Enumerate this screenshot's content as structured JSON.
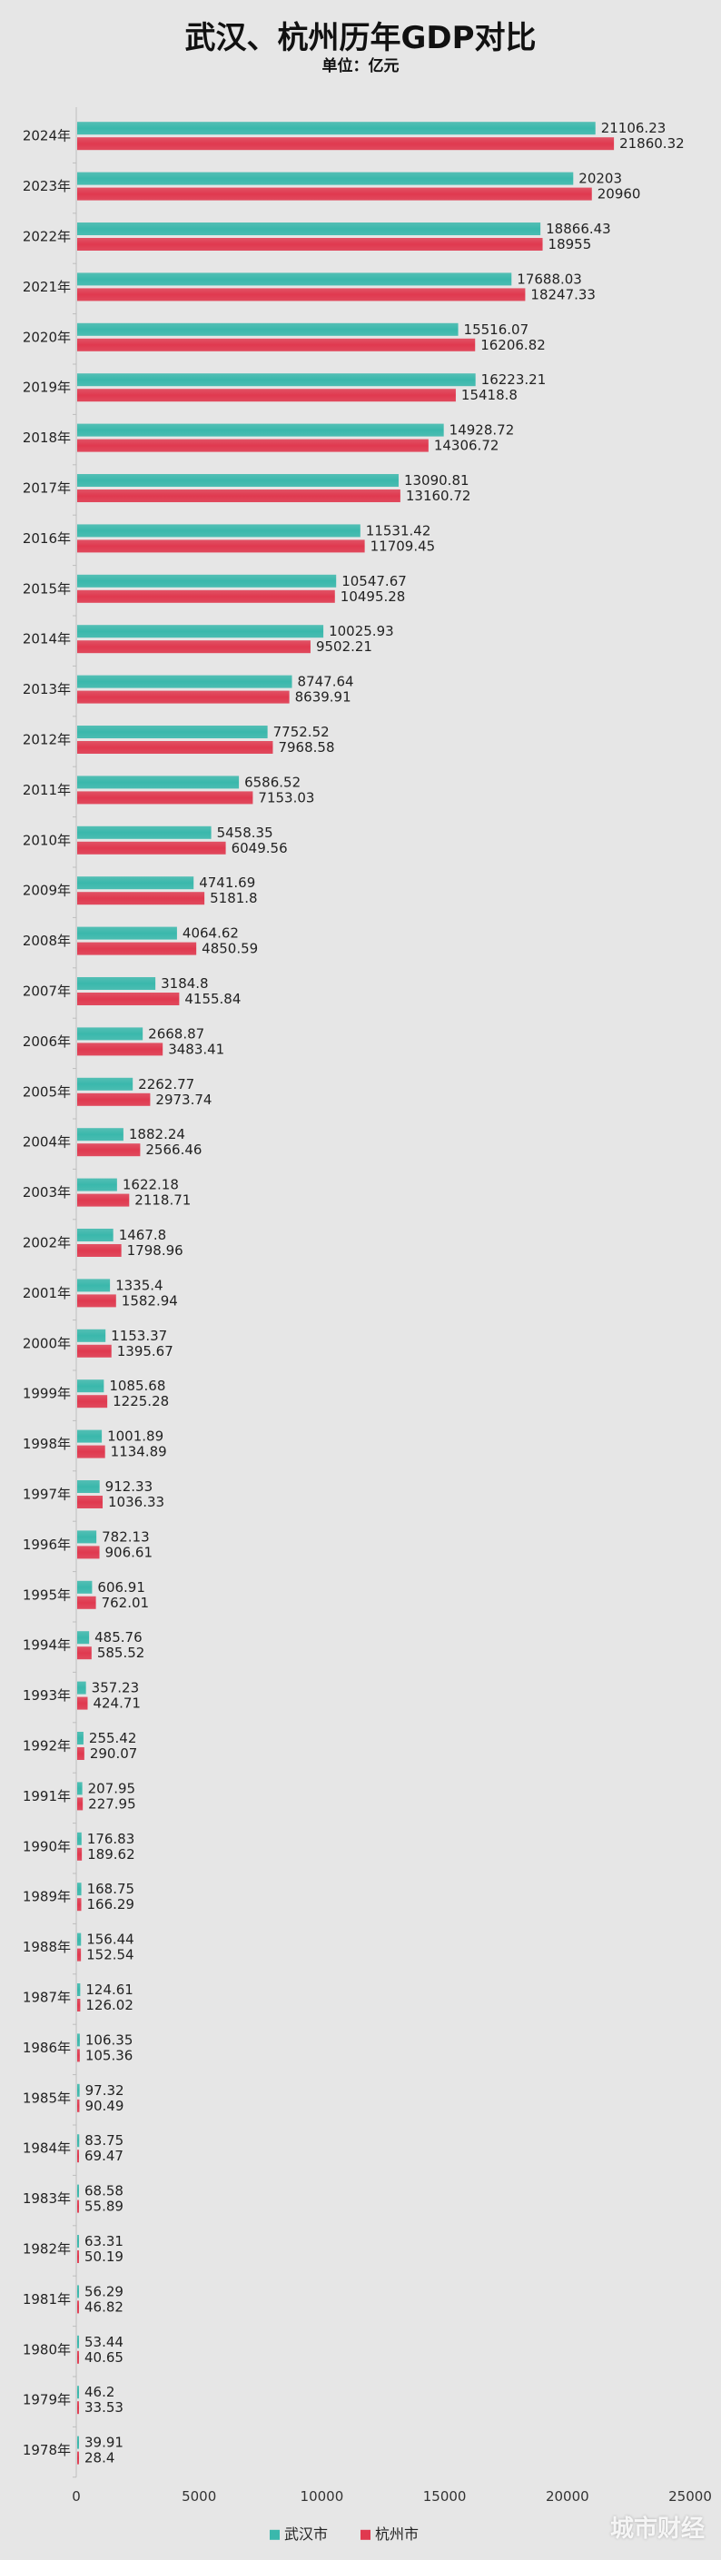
{
  "chart_data": {
    "type": "bar",
    "orientation": "horizontal",
    "title": "武汉、杭州历年GDP对比",
    "subtitle": "单位：亿元",
    "categories": [
      "2024年",
      "2023年",
      "2022年",
      "2021年",
      "2020年",
      "2019年",
      "2018年",
      "2017年",
      "2016年",
      "2015年",
      "2014年",
      "2013年",
      "2012年",
      "2011年",
      "2010年",
      "2009年",
      "2008年",
      "2007年",
      "2006年",
      "2005年",
      "2004年",
      "2003年",
      "2002年",
      "2001年",
      "2000年",
      "1999年",
      "1998年",
      "1997年",
      "1996年",
      "1995年",
      "1994年",
      "1993年",
      "1992年",
      "1991年",
      "1990年",
      "1989年",
      "1988年",
      "1987年",
      "1986年",
      "1985年",
      "1984年",
      "1983年",
      "1982年",
      "1981年",
      "1980年",
      "1979年",
      "1978年"
    ],
    "series": [
      {
        "name": "武汉市",
        "color": "#3ab8ac",
        "values": [
          21106.23,
          20203,
          18866.43,
          17688.03,
          15516.07,
          16223.21,
          14928.72,
          13090.81,
          11531.42,
          10547.67,
          10025.93,
          8747.64,
          7752.52,
          6586.52,
          5458.35,
          4741.69,
          4064.62,
          3184.8,
          2668.87,
          2262.77,
          1882.24,
          1622.18,
          1467.8,
          1335.4,
          1153.37,
          1085.68,
          1001.89,
          912.33,
          782.13,
          606.91,
          485.76,
          357.23,
          255.42,
          207.95,
          176.83,
          168.75,
          156.44,
          124.61,
          106.35,
          97.32,
          83.75,
          68.58,
          63.31,
          56.29,
          53.44,
          46.2,
          39.91
        ]
      },
      {
        "name": "杭州市",
        "color": "#e0394f",
        "values": [
          21860.32,
          20960,
          18955,
          18247.33,
          16206.82,
          15418.8,
          14306.72,
          13160.72,
          11709.45,
          10495.28,
          9502.21,
          8639.91,
          7968.58,
          7153.03,
          6049.56,
          5181.8,
          4850.59,
          4155.84,
          3483.41,
          2973.74,
          2566.46,
          2118.71,
          1798.96,
          1582.94,
          1395.67,
          1225.28,
          1134.89,
          1036.33,
          906.61,
          762.01,
          585.52,
          424.71,
          290.07,
          227.95,
          189.62,
          166.29,
          152.54,
          126.02,
          105.36,
          90.49,
          69.47,
          55.89,
          50.19,
          46.82,
          40.65,
          33.53,
          28.4
        ]
      }
    ],
    "xlim": [
      0,
      25000
    ],
    "xticks": [
      "0",
      "5000",
      "10000",
      "15000",
      "20000",
      "25000"
    ],
    "legend": "bottom-center",
    "grid": false
  },
  "watermark": "城市财经"
}
